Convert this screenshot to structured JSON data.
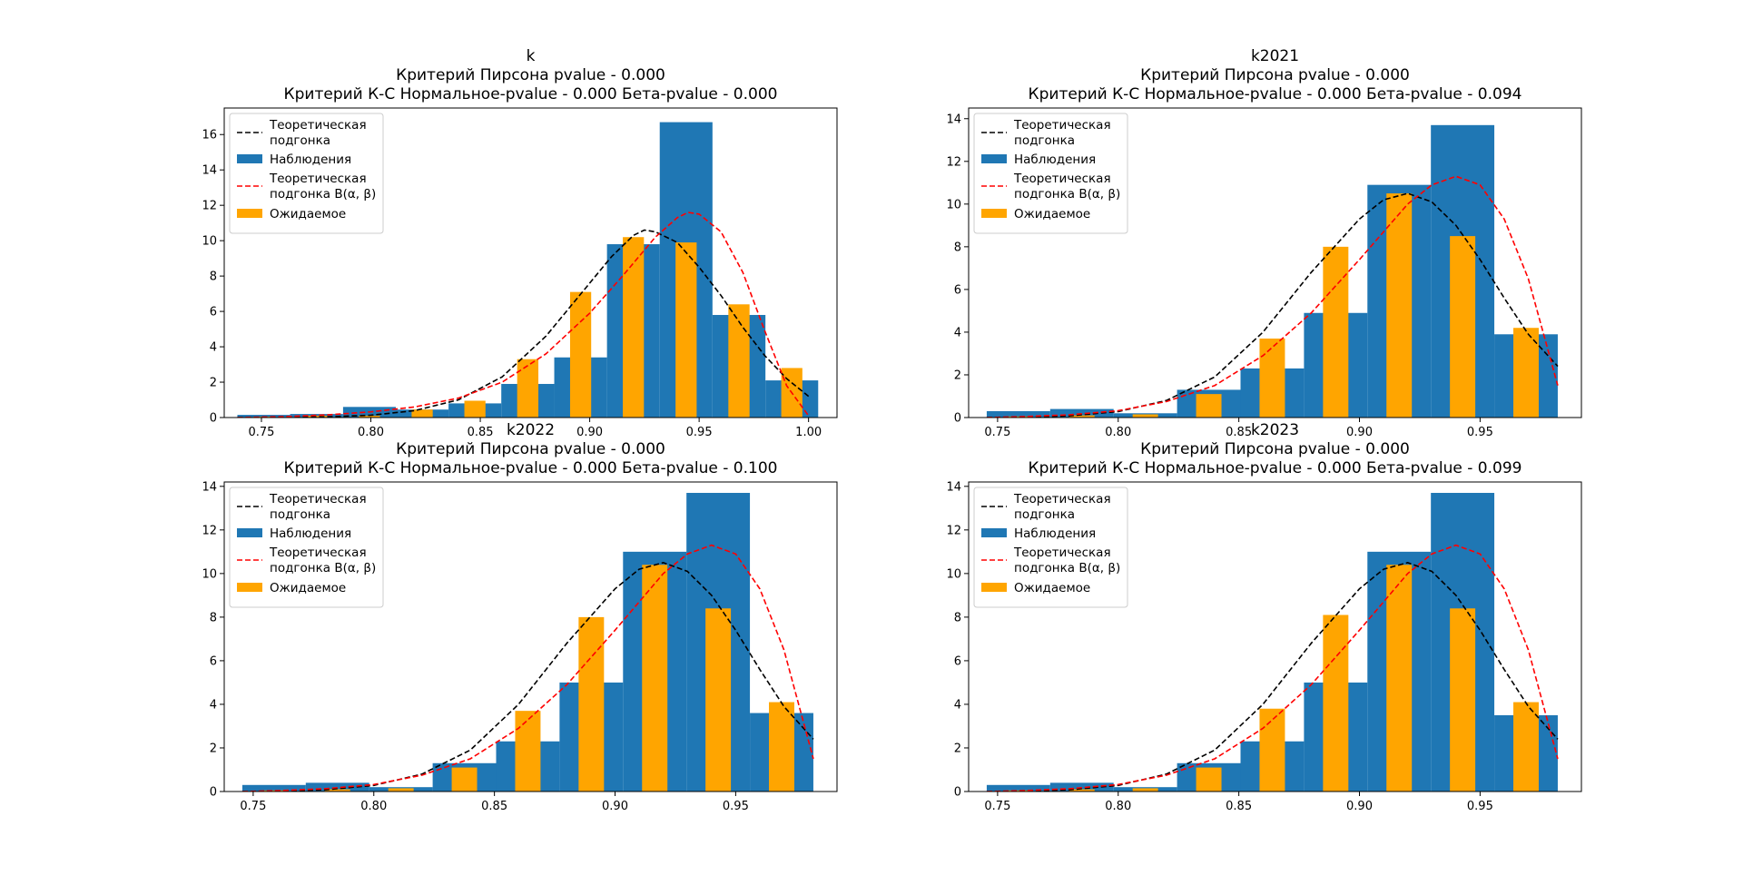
{
  "colors": {
    "observed": "#1f77b4",
    "expected": "#ffa500",
    "normal_fit": "#000000",
    "beta_fit": "#ff0000"
  },
  "chart_data": [
    {
      "type": "bar",
      "title": [
        "k",
        "Критерий Пирсона pvalue - 0.000",
        "Критерий К-С Нормальное-pvalue - 0.000 Бета-pvalue - 0.000"
      ],
      "xlim": [
        0.733,
        1.013
      ],
      "ylim": [
        0,
        17.5
      ],
      "xticks": [
        0.75,
        0.8,
        0.85,
        0.9,
        0.95,
        1.0
      ],
      "xtick_labels": [
        "0.75",
        "0.80",
        "0.85",
        "0.90",
        "0.95",
        "1.00"
      ],
      "yticks": [
        0,
        2,
        4,
        6,
        8,
        10,
        12,
        14,
        16
      ],
      "ytick_labels": [
        "0",
        "2",
        "4",
        "6",
        "8",
        "10",
        "12",
        "14",
        "16"
      ],
      "grid": false,
      "legend_placement": "upper left",
      "legend": [
        "Теоретическая подгонка",
        "Наблюдения",
        "Теоретическая подгонка B(α, β)",
        "Ожидаемое"
      ],
      "bin_edges": [
        0.739,
        0.7631,
        0.7873,
        0.8114,
        0.8355,
        0.8596,
        0.8838,
        0.9079,
        0.932,
        0.9561,
        0.9803,
        1.0044
      ],
      "observed": [
        0.15,
        0.2,
        0.6,
        0.45,
        0.8,
        1.9,
        3.4,
        9.8,
        16.7,
        5.8,
        2.1
      ],
      "expected": [
        0.05,
        0.1,
        0.1,
        0.45,
        0.95,
        3.3,
        7.1,
        10.2,
        9.9,
        6.4,
        2.8
      ],
      "normal_fit": {
        "x": [
          0.739,
          0.76,
          0.78,
          0.8,
          0.82,
          0.84,
          0.86,
          0.88,
          0.9,
          0.91,
          0.92,
          0.925,
          0.93,
          0.94,
          0.95,
          0.96,
          0.97,
          0.98,
          0.99,
          1.0
        ],
        "y": [
          0.0,
          0.01,
          0.04,
          0.13,
          0.39,
          1.0,
          2.3,
          4.6,
          7.6,
          9.1,
          10.3,
          10.6,
          10.5,
          9.9,
          8.5,
          6.9,
          5.1,
          3.5,
          2.2,
          1.2
        ]
      },
      "beta_fit": {
        "x": [
          0.739,
          0.76,
          0.78,
          0.8,
          0.82,
          0.84,
          0.86,
          0.88,
          0.9,
          0.915,
          0.93,
          0.94,
          0.945,
          0.95,
          0.96,
          0.97,
          0.98,
          0.99,
          1.0
        ],
        "y": [
          0.0,
          0.05,
          0.15,
          0.32,
          0.6,
          1.1,
          2.0,
          3.6,
          5.9,
          8.0,
          10.2,
          11.3,
          11.6,
          11.5,
          10.5,
          8.2,
          4.9,
          1.8,
          0.1
        ]
      }
    },
    {
      "type": "bar",
      "title": [
        "k2021",
        "Критерий Пирсона pvalue - 0.000",
        "Критерий К-С Нормальное-pvalue - 0.000 Бета-pvalue - 0.094"
      ],
      "xlim": [
        0.738,
        0.992
      ],
      "ylim": [
        0,
        14.5
      ],
      "xticks": [
        0.75,
        0.8,
        0.85,
        0.9,
        0.95
      ],
      "xtick_labels": [
        "0.75",
        "0.80",
        "0.85",
        "0.90",
        "0.95"
      ],
      "yticks": [
        0,
        2,
        4,
        6,
        8,
        10,
        12,
        14
      ],
      "ytick_labels": [
        "0",
        "2",
        "4",
        "6",
        "8",
        "10",
        "12",
        "14"
      ],
      "grid": false,
      "legend_placement": "upper left",
      "legend": [
        "Теоретическая подгонка",
        "Наблюдения",
        "Теоретическая подгонка B(α, β)",
        "Ожидаемое"
      ],
      "bin_edges": [
        0.7455,
        0.7718,
        0.7981,
        0.8244,
        0.8507,
        0.877,
        0.9033,
        0.9296,
        0.9559,
        0.9822
      ],
      "observed": [
        0.3,
        0.4,
        0.2,
        1.3,
        2.3,
        4.9,
        10.9,
        13.7,
        3.9
      ],
      "expected": [
        0.05,
        0.1,
        0.15,
        1.1,
        3.7,
        8.0,
        10.5,
        8.5,
        4.2
      ],
      "normal_fit": {
        "x": [
          0.7455,
          0.76,
          0.78,
          0.8,
          0.82,
          0.84,
          0.86,
          0.88,
          0.9,
          0.91,
          0.92,
          0.93,
          0.94,
          0.95,
          0.96,
          0.97,
          0.9822
        ],
        "y": [
          0.0,
          0.02,
          0.08,
          0.28,
          0.8,
          1.9,
          4.0,
          6.8,
          9.3,
          10.2,
          10.5,
          10.1,
          9.0,
          7.4,
          5.6,
          3.9,
          2.4
        ]
      },
      "beta_fit": {
        "x": [
          0.7455,
          0.76,
          0.78,
          0.8,
          0.82,
          0.84,
          0.86,
          0.88,
          0.9,
          0.92,
          0.93,
          0.94,
          0.95,
          0.96,
          0.97,
          0.9822
        ],
        "y": [
          0.0,
          0.04,
          0.13,
          0.32,
          0.75,
          1.5,
          2.9,
          4.9,
          7.4,
          10.0,
          10.9,
          11.3,
          10.9,
          9.3,
          6.5,
          1.5
        ]
      }
    },
    {
      "type": "bar",
      "title": [
        "k2022",
        "Критерий Пирсона pvalue - 0.000",
        "Критерий К-С Нормальное-pvalue - 0.000 Бета-pvalue - 0.100"
      ],
      "xlim": [
        0.738,
        0.992
      ],
      "ylim": [
        0,
        14.2
      ],
      "xticks": [
        0.75,
        0.8,
        0.85,
        0.9,
        0.95
      ],
      "xtick_labels": [
        "0.75",
        "0.80",
        "0.85",
        "0.90",
        "0.95"
      ],
      "yticks": [
        0,
        2,
        4,
        6,
        8,
        10,
        12,
        14
      ],
      "ytick_labels": [
        "0",
        "2",
        "4",
        "6",
        "8",
        "10",
        "12",
        "14"
      ],
      "grid": false,
      "legend_placement": "upper left",
      "legend": [
        "Теоретическая подгонка",
        "Наблюдения",
        "Теоретическая подгонка B(α, β)",
        "Ожидаемое"
      ],
      "bin_edges": [
        0.7455,
        0.7718,
        0.7981,
        0.8244,
        0.8507,
        0.877,
        0.9033,
        0.9296,
        0.9559,
        0.9822
      ],
      "observed": [
        0.3,
        0.4,
        0.2,
        1.3,
        2.3,
        5.0,
        11.0,
        13.7,
        3.6
      ],
      "expected": [
        0.05,
        0.1,
        0.15,
        1.1,
        3.7,
        8.0,
        10.4,
        8.4,
        4.1
      ],
      "normal_fit": {
        "x": [
          0.7455,
          0.76,
          0.78,
          0.8,
          0.82,
          0.84,
          0.86,
          0.88,
          0.9,
          0.91,
          0.92,
          0.93,
          0.94,
          0.95,
          0.96,
          0.97,
          0.9822
        ],
        "y": [
          0.0,
          0.02,
          0.08,
          0.28,
          0.8,
          1.9,
          4.0,
          6.8,
          9.3,
          10.2,
          10.5,
          10.1,
          9.0,
          7.4,
          5.6,
          3.9,
          2.4
        ]
      },
      "beta_fit": {
        "x": [
          0.7455,
          0.76,
          0.78,
          0.8,
          0.82,
          0.84,
          0.86,
          0.88,
          0.9,
          0.92,
          0.93,
          0.94,
          0.95,
          0.96,
          0.97,
          0.9822
        ],
        "y": [
          0.0,
          0.04,
          0.13,
          0.32,
          0.75,
          1.5,
          2.9,
          4.9,
          7.4,
          10.0,
          10.9,
          11.3,
          10.9,
          9.3,
          6.5,
          1.5
        ]
      }
    },
    {
      "type": "bar",
      "title": [
        "k2023",
        "Критерий Пирсона pvalue - 0.000",
        "Критерий К-С Нормальное-pvalue - 0.000 Бета-pvalue - 0.099"
      ],
      "xlim": [
        0.738,
        0.992
      ],
      "ylim": [
        0,
        14.2
      ],
      "xticks": [
        0.75,
        0.8,
        0.85,
        0.9,
        0.95
      ],
      "xtick_labels": [
        "0.75",
        "0.80",
        "0.85",
        "0.90",
        "0.95"
      ],
      "yticks": [
        0,
        2,
        4,
        6,
        8,
        10,
        12,
        14
      ],
      "ytick_labels": [
        "0",
        "2",
        "4",
        "6",
        "8",
        "10",
        "12",
        "14"
      ],
      "grid": false,
      "legend_placement": "upper left",
      "legend": [
        "Теоретическая подгонка",
        "Наблюдения",
        "Теоретическая подгонка B(α, β)",
        "Ожидаемое"
      ],
      "bin_edges": [
        0.7455,
        0.7718,
        0.7981,
        0.8244,
        0.8507,
        0.877,
        0.9033,
        0.9296,
        0.9559,
        0.9822
      ],
      "observed": [
        0.3,
        0.4,
        0.2,
        1.3,
        2.3,
        5.0,
        11.0,
        13.7,
        3.5
      ],
      "expected": [
        0.05,
        0.1,
        0.15,
        1.1,
        3.8,
        8.1,
        10.4,
        8.4,
        4.1
      ],
      "normal_fit": {
        "x": [
          0.7455,
          0.76,
          0.78,
          0.8,
          0.82,
          0.84,
          0.86,
          0.88,
          0.9,
          0.91,
          0.92,
          0.93,
          0.94,
          0.95,
          0.96,
          0.97,
          0.9822
        ],
        "y": [
          0.0,
          0.02,
          0.08,
          0.28,
          0.8,
          1.9,
          4.0,
          6.8,
          9.3,
          10.2,
          10.5,
          10.1,
          9.0,
          7.4,
          5.6,
          3.9,
          2.4
        ]
      },
      "beta_fit": {
        "x": [
          0.7455,
          0.76,
          0.78,
          0.8,
          0.82,
          0.84,
          0.86,
          0.88,
          0.9,
          0.92,
          0.93,
          0.94,
          0.95,
          0.96,
          0.97,
          0.9822
        ],
        "y": [
          0.0,
          0.04,
          0.13,
          0.32,
          0.75,
          1.5,
          2.9,
          4.9,
          7.4,
          10.0,
          10.9,
          11.3,
          10.9,
          9.3,
          6.5,
          1.5
        ]
      }
    }
  ]
}
